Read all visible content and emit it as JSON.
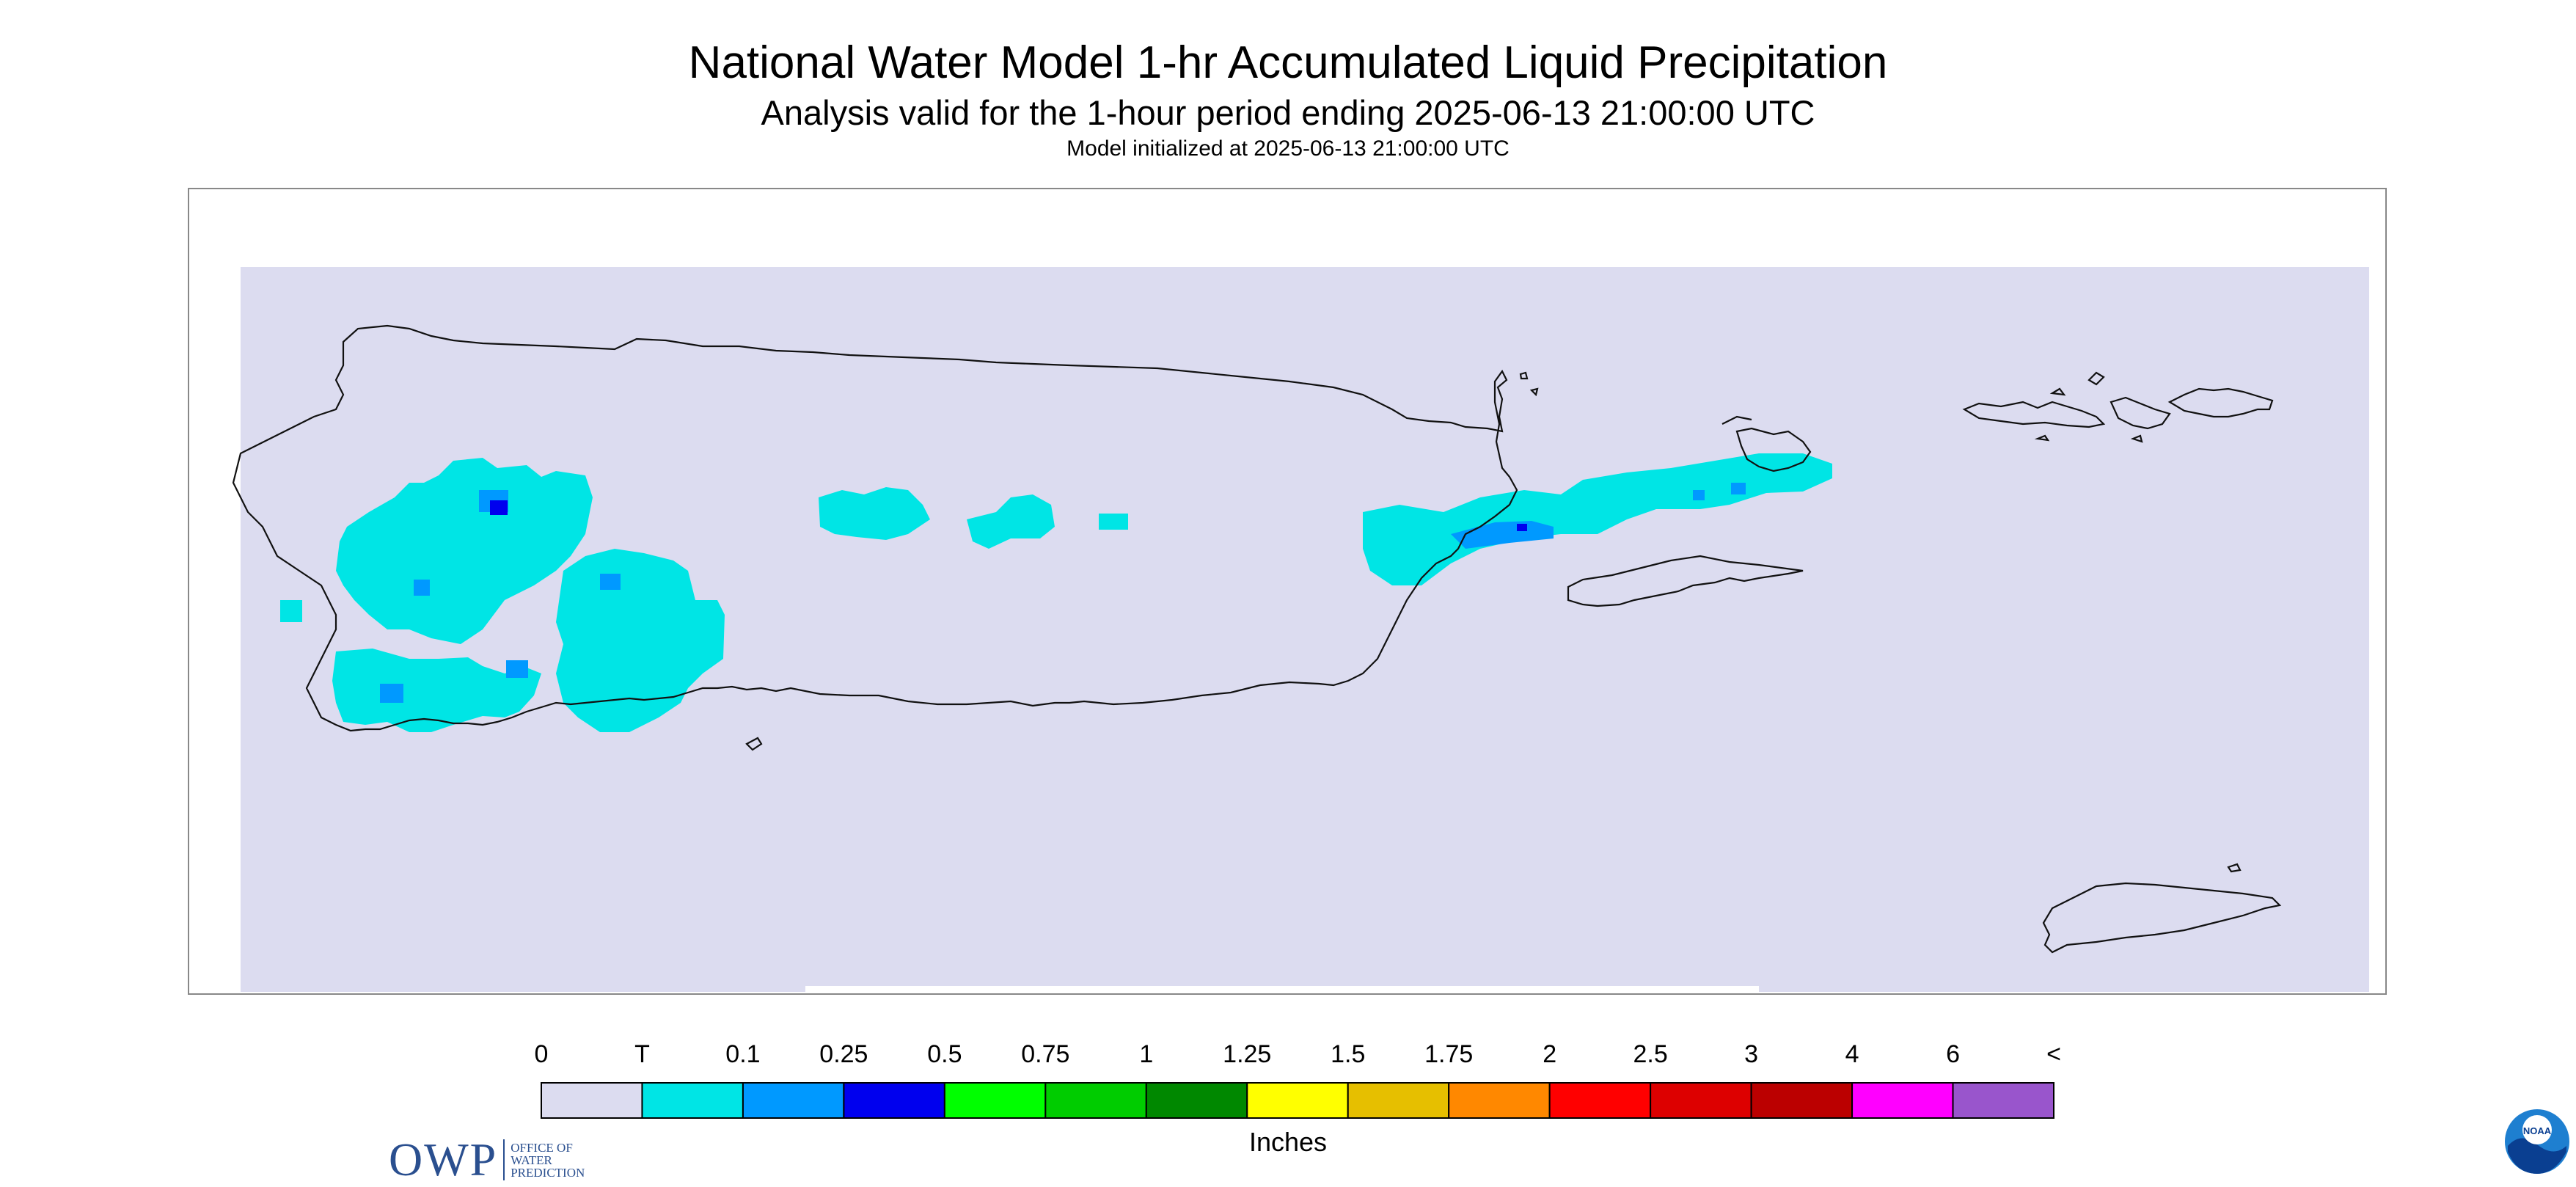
{
  "title": "National Water Model 1-hr Accumulated Liquid Precipitation",
  "subtitle": "Analysis valid for the 1-hour period ending 2025-06-13 21:00:00 UTC",
  "model_init": "Model initialized at 2025-06-13 21:00:00 UTC",
  "logos": {
    "owp_mark": "OWP",
    "owp_text": [
      "OFFICE OF",
      "WATER",
      "PREDICTION"
    ],
    "noaa_text": "NOAA"
  },
  "colors": {
    "background": "#dcdcf0",
    "trace": "#00e5e5",
    "low": "#0099ff",
    "mid": "#0000ee"
  },
  "legend": {
    "labels": [
      "0",
      "T",
      "0.1",
      "0.25",
      "0.5",
      "0.75",
      "1",
      "1.25",
      "1.5",
      "1.75",
      "2",
      "2.5",
      "3",
      "4",
      "6",
      "<"
    ],
    "colors": [
      "#dcdcf0",
      "#00e5e5",
      "#0099ff",
      "#0000ee",
      "#00ff00",
      "#00cc00",
      "#008800",
      "#ffff00",
      "#e6bf00",
      "#ff8800",
      "#ff0000",
      "#dd0000",
      "#bb0000",
      "#ff00ff",
      "#9955cc"
    ],
    "units": "Inches"
  }
}
